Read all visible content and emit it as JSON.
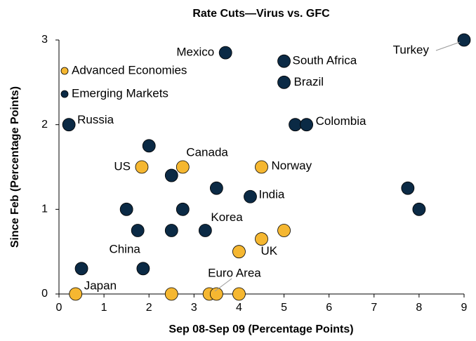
{
  "chart_data": {
    "type": "scatter",
    "title": "Rate Cuts—Virus vs. GFC",
    "xlabel": "Sep 08-Sep 09 (Percentage Points)",
    "ylabel": "Since Feb (Percentage Points)",
    "xlim": [
      0,
      9
    ],
    "xticks": [
      0,
      1,
      2,
      3,
      4,
      5,
      6,
      7,
      8,
      9
    ],
    "ylim": [
      0,
      3
    ],
    "yticks": [
      0,
      1,
      2,
      3
    ],
    "legend": "upper left",
    "series": [
      {
        "name": "Advanced Economies",
        "color": "#f5b731",
        "x": [
          1.84,
          2.75,
          4.5,
          4.5,
          5,
          4,
          0.37,
          2.5,
          3.34,
          3.5,
          4
        ],
        "values": [
          1.5,
          1.5,
          1.5,
          0.65,
          0.75,
          0.5,
          0,
          0,
          0,
          0,
          0
        ],
        "labels": [
          "US",
          "Canada",
          "Norway",
          "UK",
          null,
          null,
          "Japan",
          null,
          "Euro Area",
          null,
          null
        ]
      },
      {
        "name": "Emerging Markets",
        "color": "#0b2a45",
        "x": [
          9,
          3.7,
          5,
          5,
          0.22,
          5.25,
          5.5,
          2,
          2.5,
          3.5,
          4.25,
          7.75,
          8,
          1.5,
          2.75,
          1.75,
          2.5,
          3.25,
          0.5,
          1.87
        ],
        "values": [
          3,
          2.85,
          2.75,
          2.5,
          2,
          2,
          2,
          1.75,
          1.4,
          1.25,
          1.15,
          1.25,
          1,
          1,
          1,
          0.75,
          0.75,
          0.75,
          0.3,
          0.3
        ],
        "labels": [
          "Turkey",
          "Mexico",
          "South Africa",
          "Brazil",
          "Russia",
          null,
          "Colombia",
          null,
          null,
          null,
          "India",
          null,
          null,
          null,
          null,
          null,
          null,
          "Korea",
          null,
          "China"
        ]
      }
    ]
  }
}
